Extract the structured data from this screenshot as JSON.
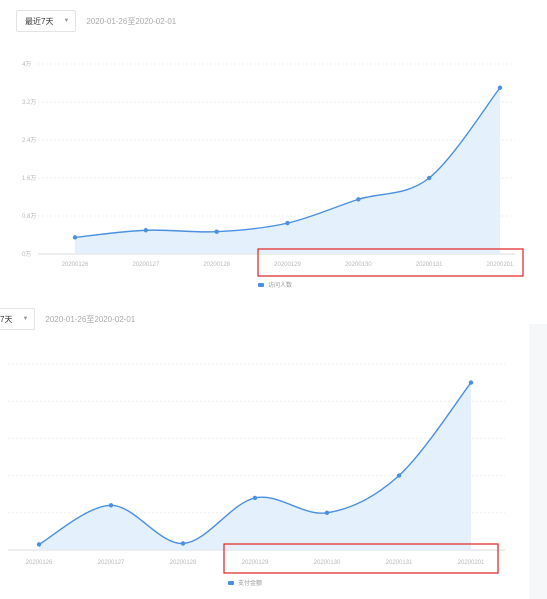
{
  "panels": [
    {
      "select_value": "最近7天",
      "date_range": "2020-01-26至2020-02-01"
    },
    {
      "select_value": "7天",
      "date_range": "2020-01-26至2020-02-01"
    }
  ],
  "icons": {
    "dropdown": "chevron-down-icon"
  },
  "colors": {
    "line": "#4a90e2",
    "fill": "#dfeefc",
    "highlight": "#e02020",
    "grid": "#eeeeee"
  },
  "chart_data": [
    {
      "type": "area",
      "categories": [
        "20200126",
        "20200127",
        "20200128",
        "20200129",
        "20200130",
        "20200131",
        "20200201"
      ],
      "y_ticks": [
        "0万",
        "0.8万",
        "1.6万",
        "2.4万",
        "3.2万",
        "4万"
      ],
      "ylim": [
        0,
        4
      ],
      "series": [
        {
          "name": "访问人数",
          "values": [
            0.35,
            0.5,
            0.47,
            0.65,
            1.15,
            1.6,
            3.5
          ]
        }
      ],
      "grid": true,
      "legend": "bottom-center",
      "highlight": {
        "from": "20200129",
        "to": "20200201",
        "color": "#e02020"
      }
    },
    {
      "type": "area",
      "categories": [
        "20200126",
        "20200127",
        "20200128",
        "20200129",
        "20200130",
        "20200131",
        "20200201"
      ],
      "y_ticks": [],
      "ylim": [
        0,
        4
      ],
      "series": [
        {
          "name": "支付金额",
          "values": [
            0.12,
            0.96,
            0.14,
            1.12,
            0.8,
            1.6,
            3.6
          ]
        }
      ],
      "grid": true,
      "legend": "bottom-center",
      "highlight": {
        "from": "20200129",
        "to": "20200201",
        "color": "#e02020"
      }
    }
  ]
}
